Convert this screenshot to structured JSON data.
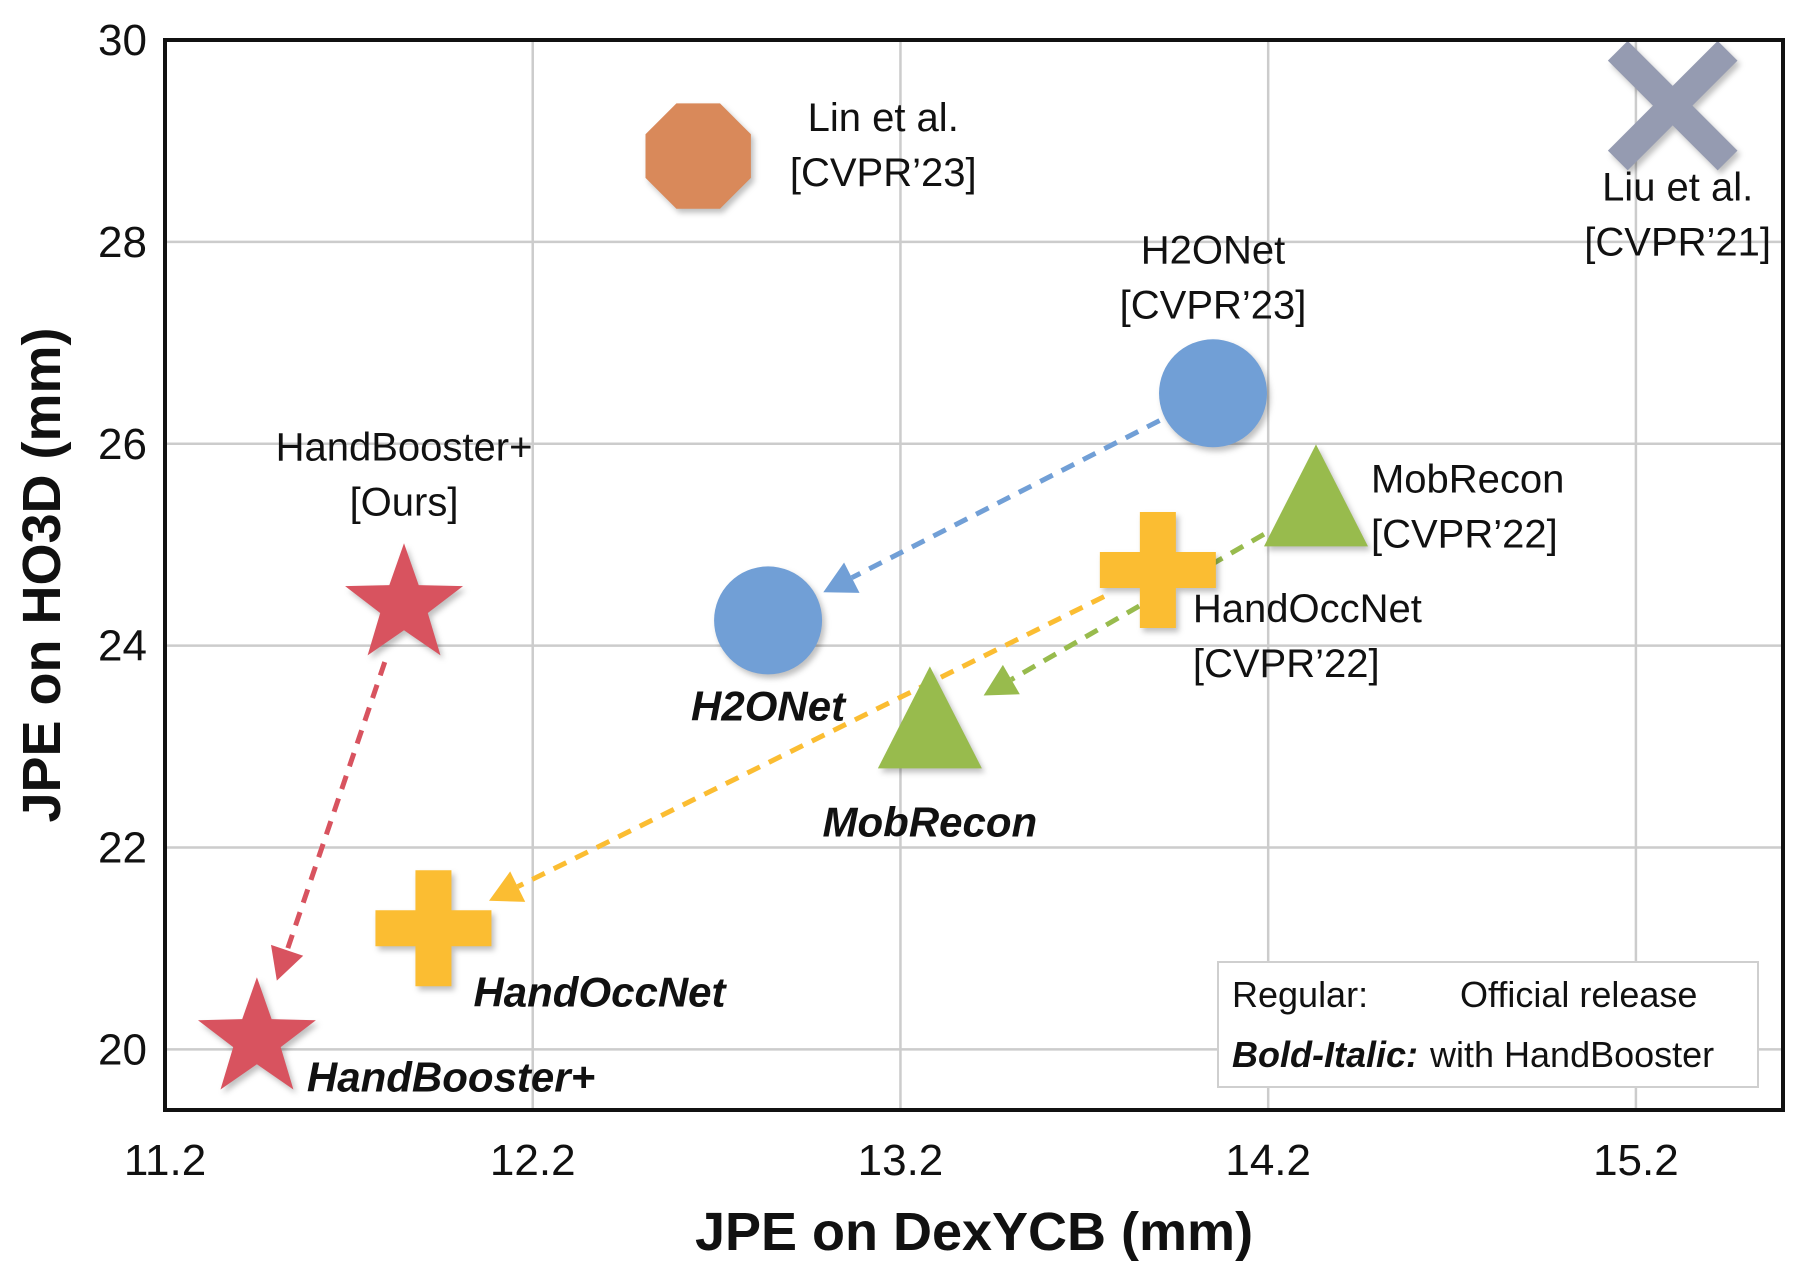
{
  "chart_data": {
    "type": "scatter",
    "xlabel": "JPE  on  DexYCB (mm)",
    "ylabel": "JPE  on  HO3D (mm)",
    "xlim": [
      11.2,
      15.6
    ],
    "ylim": [
      19.4,
      30
    ],
    "xticks": [
      "11.2",
      "12.2",
      "13.2",
      "14.2",
      "15.2"
    ],
    "yticks": [
      "20",
      "22",
      "24",
      "26",
      "28",
      "30"
    ],
    "grid": true,
    "points": [
      {
        "id": "lin",
        "label": [
          "Lin et al.",
          "[CVPR’23]"
        ],
        "style": "regular",
        "marker": "octagon",
        "color": "#d9895a",
        "x": 12.65,
        "y": 28.85
      },
      {
        "id": "liu",
        "label": [
          "Liu et al.",
          "[CVPR’21]"
        ],
        "style": "regular",
        "marker": "x",
        "color": "#959bb1",
        "x": 15.3,
        "y": 29.35
      },
      {
        "id": "h2onet",
        "label": [
          "H2ONet",
          "[CVPR’23]"
        ],
        "style": "regular",
        "marker": "circle",
        "color": "#719fd6",
        "x": 14.05,
        "y": 26.5
      },
      {
        "id": "mobrecon",
        "label": [
          "MobRecon",
          "[CVPR’22]"
        ],
        "style": "regular",
        "marker": "triangle",
        "color": "#98bb4d",
        "x": 14.33,
        "y": 25.4
      },
      {
        "id": "handoccnet",
        "label": [
          "HandOccNet",
          "[CVPR’22]"
        ],
        "style": "regular",
        "marker": "plus",
        "color": "#fbbd32",
        "x": 13.9,
        "y": 24.75
      },
      {
        "id": "handbooster",
        "label": [
          "HandBooster+",
          "[Ours]"
        ],
        "style": "regular",
        "marker": "star",
        "color": "#d8535f",
        "x": 11.85,
        "y": 24.4
      },
      {
        "id": "h2onet_hb",
        "label": [
          "H2ONet"
        ],
        "style": "bold-italic",
        "marker": "circle",
        "color": "#719fd6",
        "x": 12.84,
        "y": 24.25
      },
      {
        "id": "mobrecon_hb",
        "label": [
          "MobRecon"
        ],
        "style": "bold-italic",
        "marker": "triangle",
        "color": "#98bb4d",
        "x": 13.28,
        "y": 23.2
      },
      {
        "id": "handoccnet_hb",
        "label": [
          "HandOccNet"
        ],
        "style": "bold-italic",
        "marker": "plus",
        "color": "#fbbd32",
        "x": 11.93,
        "y": 21.2
      },
      {
        "id": "handbooster_hb",
        "label": [
          "HandBooster+"
        ],
        "style": "bold-italic",
        "marker": "star",
        "color": "#d8535f",
        "x": 11.45,
        "y": 20.1
      }
    ],
    "arrows": [
      {
        "from": "h2onet",
        "to": "h2onet_hb",
        "color": "#719fd6"
      },
      {
        "from": "mobrecon",
        "to": "mobrecon_hb",
        "color": "#98bb4d"
      },
      {
        "from": "handoccnet",
        "to": "handoccnet_hb",
        "color": "#fbbd32"
      },
      {
        "from": "handbooster",
        "to": "handbooster_hb",
        "color": "#d8535f"
      }
    ],
    "legend": {
      "placement": "bottom-right",
      "rows": [
        {
          "key": "Regular:",
          "value": "Official release",
          "key_style": "regular"
        },
        {
          "key": "Bold-Italic",
          "value": "with HandBooster",
          "key_style": "bold-italic"
        }
      ]
    }
  }
}
